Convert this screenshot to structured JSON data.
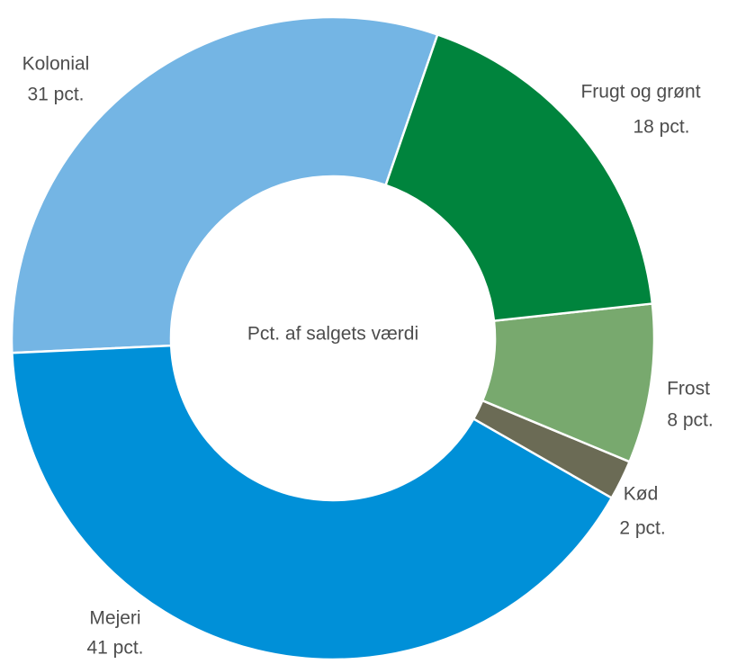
{
  "chart_data": {
    "type": "donut",
    "center_text": "Pct. af salgets værdi",
    "categories": [
      "Frugt og grønt",
      "Frost",
      "Kød",
      "Mejeri",
      "Kolonial"
    ],
    "values": [
      18,
      8,
      2,
      41,
      31
    ],
    "value_labels": [
      "18 pct.",
      "8 pct.",
      "2 pct.",
      "41 pct.",
      "31 pct."
    ],
    "colors": [
      "#00843d",
      "#78a96e",
      "#6b6b55",
      "#0090d8",
      "#74b5e4"
    ]
  }
}
